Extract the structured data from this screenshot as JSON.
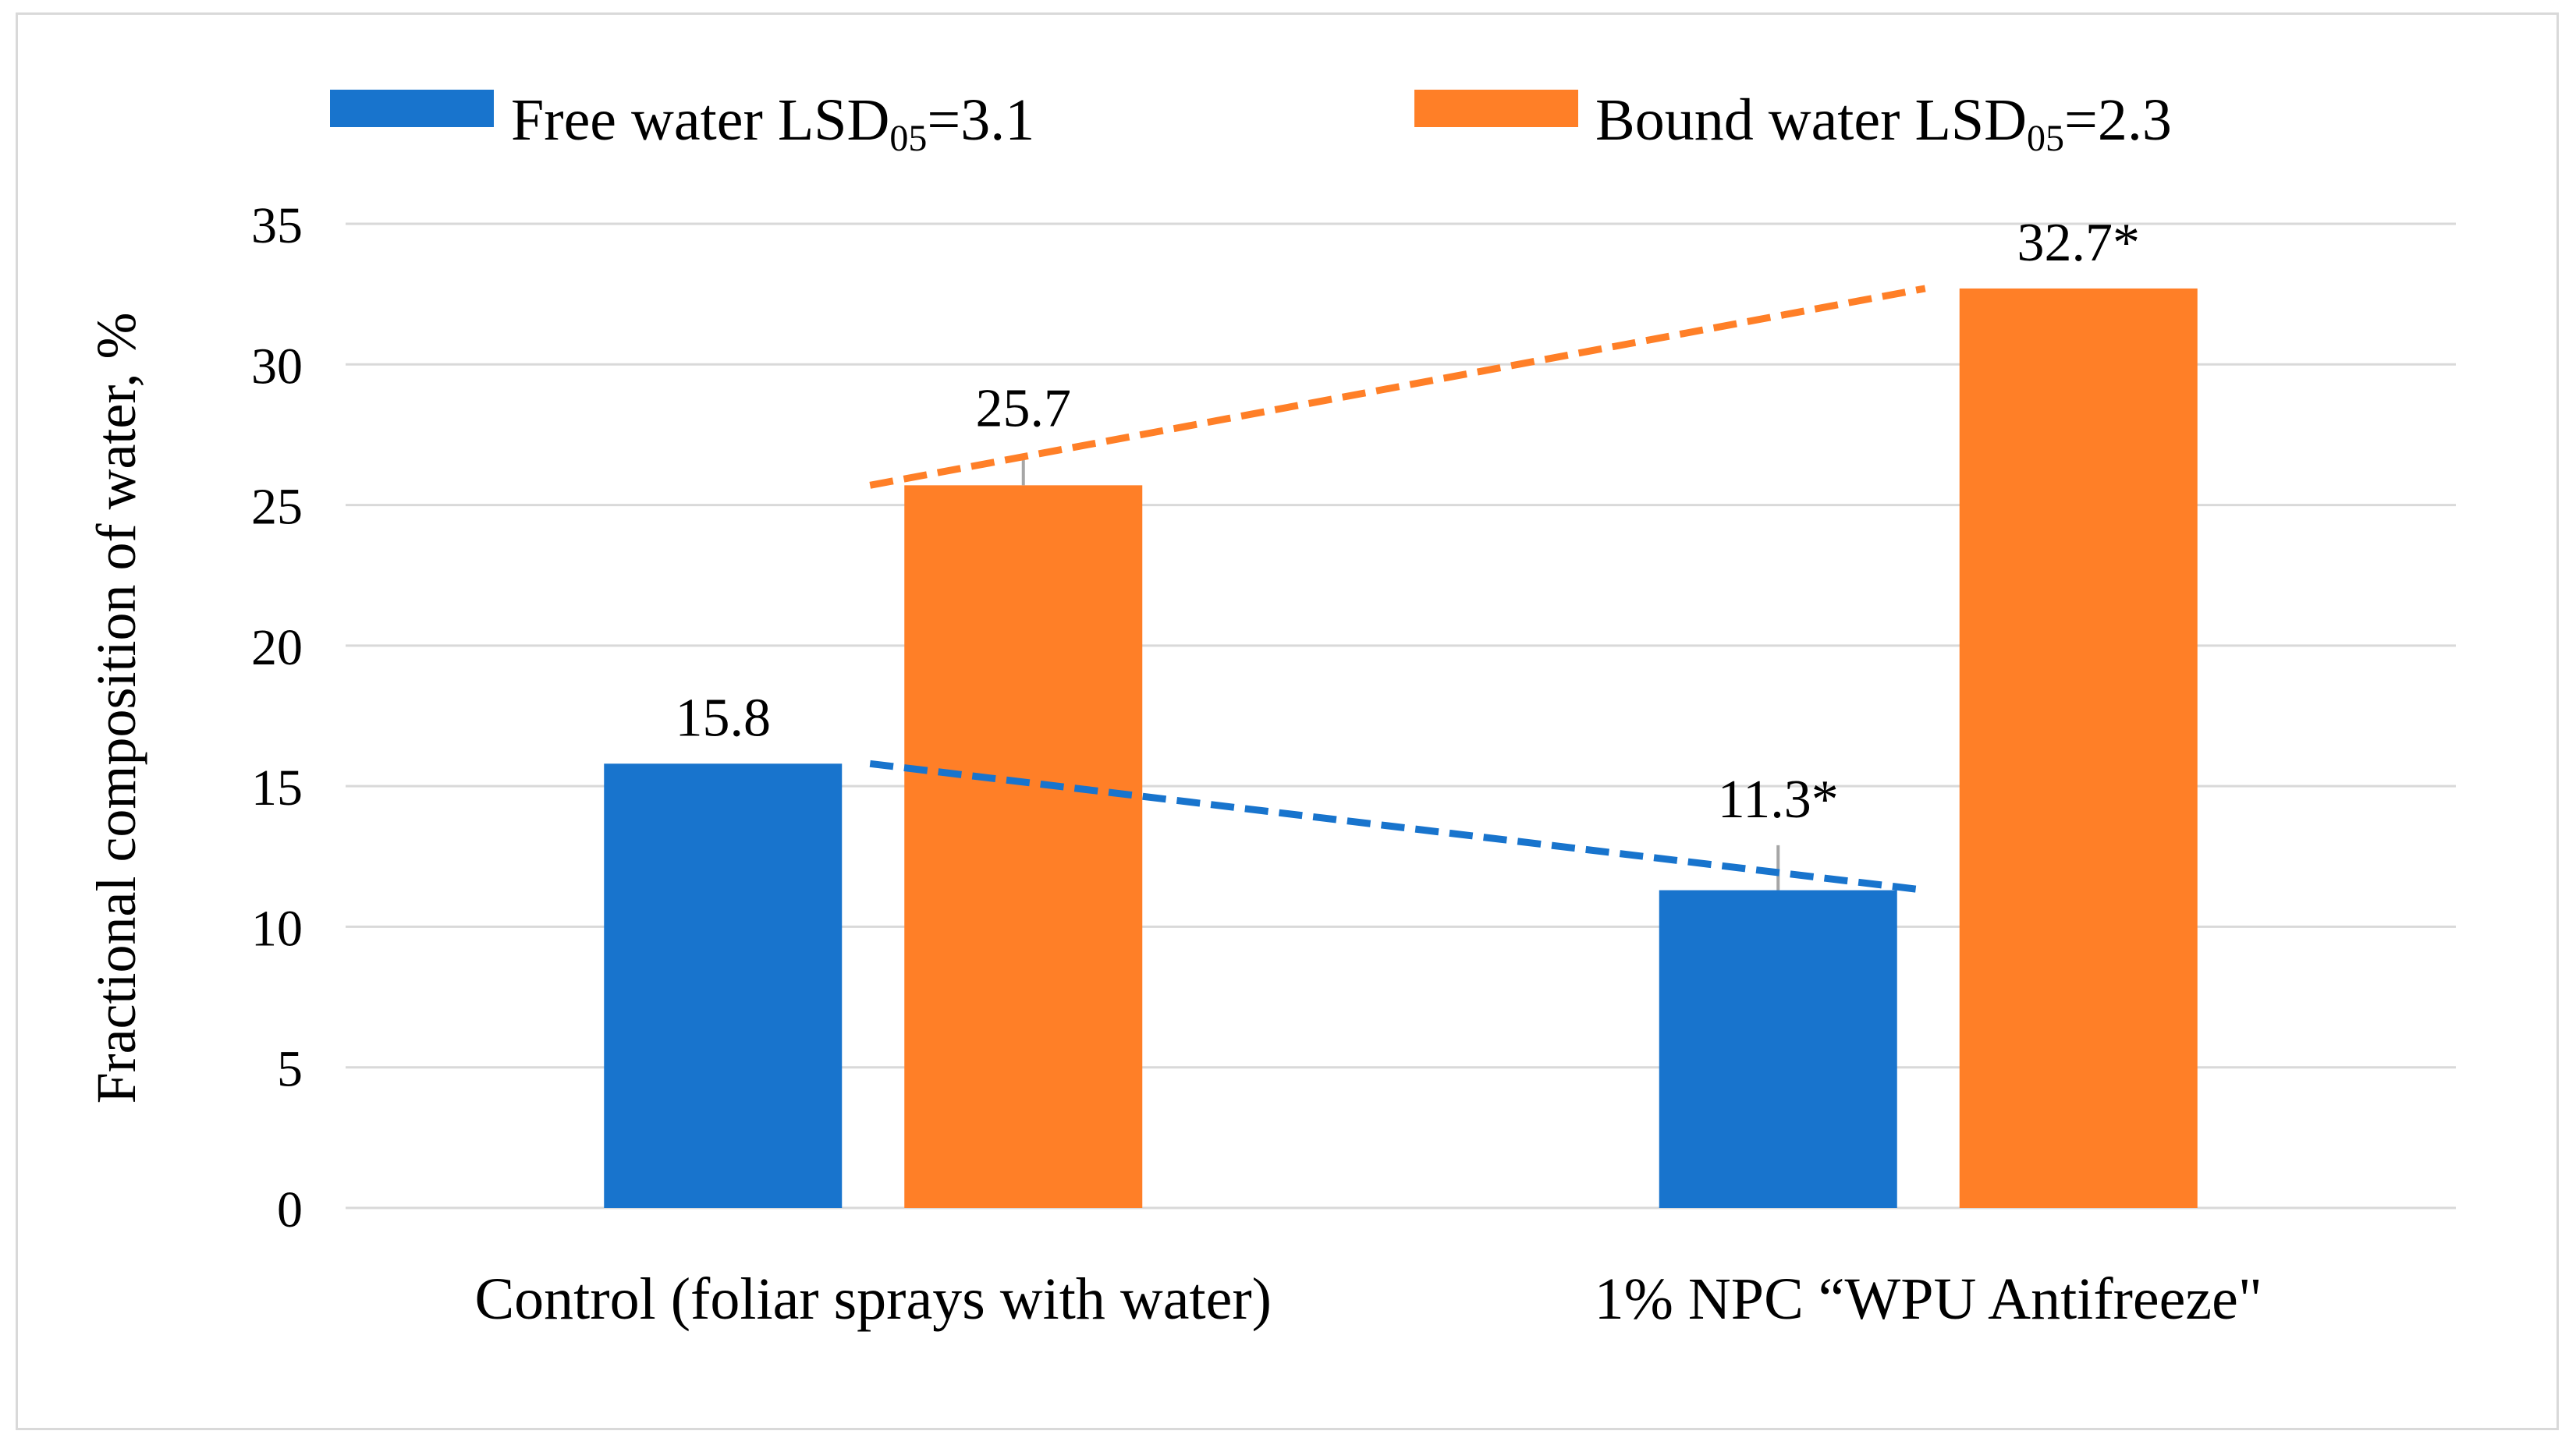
{
  "chart_data": {
    "type": "bar",
    "title": "",
    "xlabel": "",
    "ylabel": "Fractional composition of water, %",
    "ylim": [
      0,
      35
    ],
    "yticks": [
      0,
      5,
      10,
      15,
      20,
      25,
      30,
      35
    ],
    "ytick_labels": [
      "0",
      "5",
      "10",
      "15",
      "20",
      "25",
      "30",
      "35"
    ],
    "grid": true,
    "legend_position": "top",
    "categories": [
      "Control (foliar sprays with water)",
      "1% NPC “WPU Antifreeze\""
    ],
    "series": [
      {
        "name": "Free water",
        "legend_label": "Free water LSD",
        "legend_subscript": "05",
        "legend_suffix": "=3.1",
        "color": "#1874cd",
        "values": [
          15.8,
          11.3
        ],
        "data_labels": [
          "15.8",
          "11.3*"
        ],
        "error": [
          0,
          1.6
        ],
        "trendline": true,
        "trendline_values": [
          15.8,
          11.3
        ]
      },
      {
        "name": "Bound water",
        "legend_label": "Bound water LSD",
        "legend_subscript": "05",
        "legend_suffix": "=2.3",
        "color": "#ff7f27",
        "values": [
          25.7,
          32.7
        ],
        "data_labels": [
          "25.7",
          "32.7*"
        ],
        "error": [
          1.1,
          0
        ],
        "trendline": true,
        "trendline_values": [
          25.7,
          32.7
        ]
      }
    ],
    "gridline_color": "#d9d9d9",
    "errorbar_color": "#a6a6a6"
  }
}
